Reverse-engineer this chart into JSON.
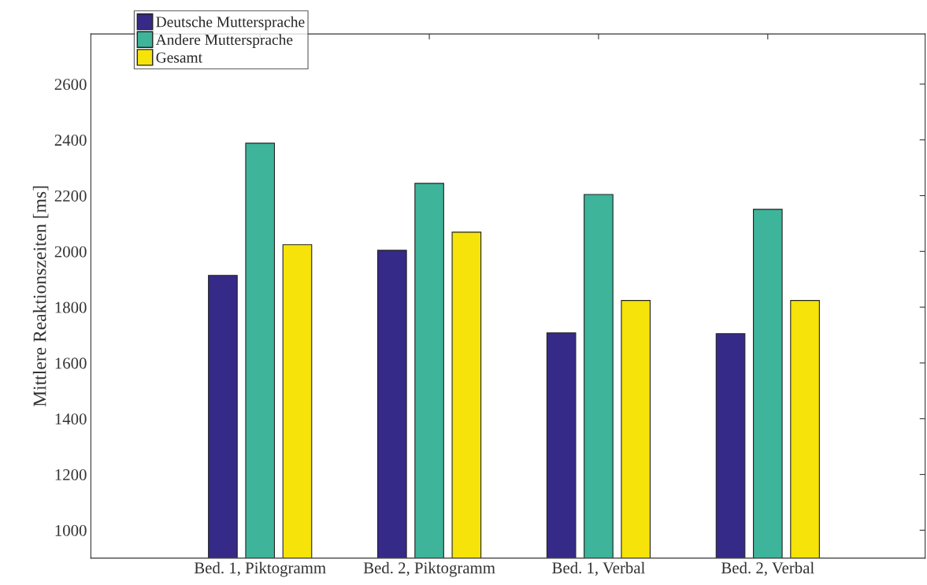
{
  "chart_data": {
    "type": "bar",
    "ylabel": "Mittlere Reaktionszeiten [ms]",
    "categories": [
      "Bed. 1, Piktogramm",
      "Bed. 2, Piktogramm",
      "Bed. 1, Verbal",
      "Bed. 2, Verbal"
    ],
    "series": [
      {
        "name": "Deutsche Muttersprache",
        "color": "#352a87",
        "values": [
          1914,
          2004,
          1708,
          1705
        ]
      },
      {
        "name": "Andere Muttersprache",
        "color": "#3eb49a",
        "values": [
          2388,
          2244,
          2204,
          2151
        ]
      },
      {
        "name": "Gesamt",
        "color": "#f5e30a",
        "values": [
          2024,
          2069,
          1824,
          1824
        ]
      }
    ],
    "ylim": [
      900,
      2780
    ],
    "yticks": [
      1000,
      1200,
      1400,
      1600,
      1800,
      2000,
      2200,
      2400,
      2600
    ],
    "grid": false,
    "legend": "top left"
  }
}
